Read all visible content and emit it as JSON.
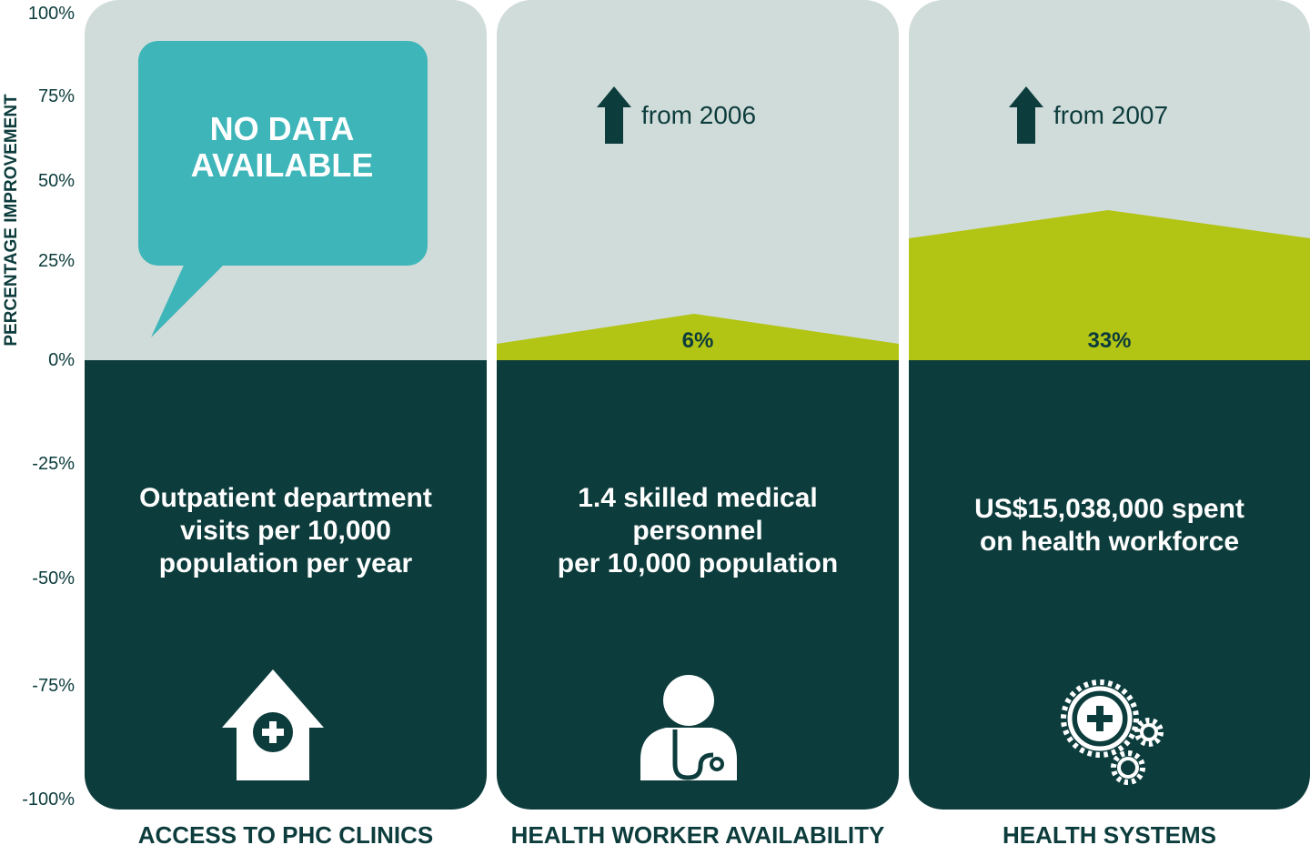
{
  "colors": {
    "upper_bg": "#d0dcda",
    "lower_bg": "#0d3c3c",
    "accent": "#b2c414",
    "bubble": "#3db5b9",
    "text_dark": "#0d3c3c"
  },
  "chart_data": {
    "type": "area",
    "ylabel": "PERCENTAGE IMPROVEMENT",
    "ylim": [
      -100,
      100
    ],
    "yticks": [
      {
        "value": 100,
        "label": "100%"
      },
      {
        "value": 75,
        "label": "75%"
      },
      {
        "value": 50,
        "label": "50%"
      },
      {
        "value": 25,
        "label": "25%"
      },
      {
        "value": 0,
        "label": "0%"
      },
      {
        "value": -25,
        "label": "-25%"
      },
      {
        "value": -50,
        "label": "-50%"
      },
      {
        "value": -75,
        "label": "-75%"
      },
      {
        "value": -100,
        "label": "-100%"
      }
    ],
    "categories": [
      {
        "label": "ACCESS TO PHC CLINICS",
        "value": null,
        "no_data_lines": [
          "NO DATA",
          "AVAILABLE"
        ],
        "arrow": false,
        "from": "",
        "description_lines": [
          "Outpatient department",
          "visits per 10,000",
          "population per year"
        ],
        "icon": "clinic-icon"
      },
      {
        "label": "HEALTH WORKER AVAILABILITY",
        "value": 6,
        "value_label": "6%",
        "arrow": true,
        "from": "from 2006",
        "description_lines": [
          "1.4 skilled medical",
          "personnel",
          "per 10,000 population"
        ],
        "icon": "doctor-icon"
      },
      {
        "label": "HEALTH SYSTEMS",
        "value": 33,
        "value_label": "33%",
        "arrow": true,
        "from": "from 2007",
        "description_lines": [
          "US$15,038,000 spent",
          "on health workforce"
        ],
        "icon": "gears-icon"
      }
    ]
  }
}
